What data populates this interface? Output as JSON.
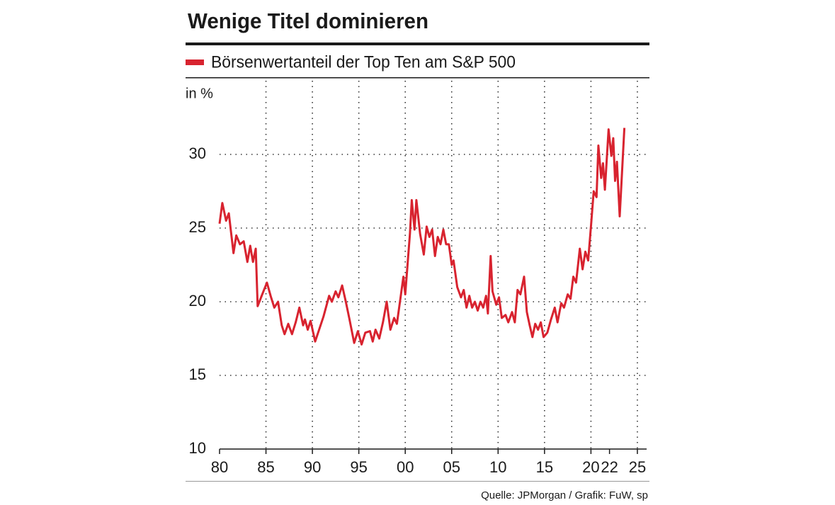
{
  "chart_data": {
    "type": "line",
    "title": "Wenige Titel dominieren",
    "y_label": "in %",
    "source": "Quelle: JPMorgan / Grafik: FuW, sp",
    "xlim": [
      1980,
      2026
    ],
    "xticks": [
      {
        "value": 1980,
        "label": "80"
      },
      {
        "value": 1985,
        "label": "85"
      },
      {
        "value": 1990,
        "label": "90"
      },
      {
        "value": 1995,
        "label": "95"
      },
      {
        "value": 2000,
        "label": "00"
      },
      {
        "value": 2005,
        "label": "05"
      },
      {
        "value": 2010,
        "label": "10"
      },
      {
        "value": 2015,
        "label": "15"
      },
      {
        "value": 2020,
        "label": "20"
      },
      {
        "value": 2022,
        "label": "22"
      },
      {
        "value": 2025,
        "label": "25"
      }
    ],
    "ylim": [
      10,
      35
    ],
    "yticks": [
      10,
      15,
      20,
      25,
      30
    ],
    "grid": true,
    "series": [
      {
        "name": "Börsenwertanteil der Top Ten am S&P 500",
        "color": "#d8232f",
        "x": [
          1980.0,
          1980.3,
          1980.7,
          1981.0,
          1981.5,
          1981.8,
          1982.2,
          1982.6,
          1983.0,
          1983.3,
          1983.6,
          1983.9,
          1984.1,
          1984.6,
          1985.1,
          1985.5,
          1985.9,
          1986.3,
          1986.7,
          1987.0,
          1987.4,
          1987.8,
          1988.2,
          1988.6,
          1989.0,
          1989.2,
          1989.5,
          1989.8,
          1990.3,
          1991.2,
          1991.8,
          1992.1,
          1992.5,
          1992.8,
          1993.2,
          1993.6,
          1994.0,
          1994.5,
          1994.9,
          1995.3,
          1995.7,
          1996.2,
          1996.5,
          1996.8,
          1997.2,
          1997.6,
          1998.0,
          1998.4,
          1998.8,
          1999.1,
          1999.5,
          1999.8,
          2000.0,
          2000.5,
          2000.7,
          2001.0,
          2001.2,
          2001.6,
          2002.0,
          2002.3,
          2002.6,
          2002.9,
          2003.2,
          2003.5,
          2003.8,
          2004.1,
          2004.4,
          2004.7,
          2005.0,
          2005.2,
          2005.6,
          2006.0,
          2006.3,
          2006.6,
          2006.9,
          2007.2,
          2007.5,
          2007.8,
          2008.1,
          2008.4,
          2008.7,
          2008.9,
          2009.2,
          2009.4,
          2009.8,
          2010.1,
          2010.4,
          2010.8,
          2011.1,
          2011.5,
          2011.8,
          2012.1,
          2012.4,
          2012.8,
          2013.1,
          2013.4,
          2013.7,
          2014.0,
          2014.3,
          2014.6,
          2014.9,
          2015.3,
          2015.7,
          2016.1,
          2016.4,
          2016.8,
          2017.1,
          2017.5,
          2017.8,
          2018.1,
          2018.4,
          2018.8,
          2019.1,
          2019.4,
          2019.7,
          2020.0,
          2020.3,
          2020.6,
          2020.8,
          2021.1,
          2021.3,
          2021.5,
          2021.9,
          2022.2,
          2022.4,
          2022.6,
          2022.8,
          2023.1,
          2023.6
        ],
        "values": [
          25.3,
          26.7,
          25.5,
          26.0,
          23.3,
          24.5,
          23.9,
          24.1,
          22.7,
          23.8,
          22.7,
          23.6,
          19.7,
          20.5,
          21.3,
          20.4,
          19.6,
          20.0,
          18.4,
          17.8,
          18.5,
          17.8,
          18.6,
          19.6,
          18.4,
          18.8,
          18.1,
          18.7,
          17.3,
          19.0,
          20.4,
          20.0,
          20.7,
          20.3,
          21.1,
          20.0,
          18.8,
          17.2,
          18.0,
          17.1,
          17.9,
          18.0,
          17.3,
          18.1,
          17.5,
          18.6,
          20.0,
          18.1,
          18.9,
          18.5,
          20.3,
          21.7,
          20.5,
          24.6,
          26.9,
          24.9,
          26.9,
          24.6,
          23.2,
          25.1,
          24.4,
          24.9,
          23.1,
          24.4,
          23.9,
          24.9,
          23.9,
          23.9,
          22.5,
          22.8,
          21.0,
          20.3,
          20.8,
          19.6,
          20.4,
          19.6,
          20.0,
          19.4,
          20.0,
          19.6,
          20.4,
          19.2,
          23.1,
          20.7,
          19.8,
          20.3,
          18.9,
          19.1,
          18.6,
          19.3,
          18.6,
          20.8,
          20.5,
          21.7,
          19.3,
          18.4,
          17.6,
          18.5,
          18.1,
          18.6,
          17.6,
          17.9,
          18.8,
          19.6,
          18.6,
          19.9,
          19.6,
          20.5,
          20.2,
          21.7,
          21.3,
          23.6,
          22.2,
          23.4,
          22.8,
          25.1,
          27.5,
          27.1,
          30.6,
          28.4,
          29.4,
          27.6,
          31.7,
          29.9,
          31.1,
          28.2,
          29.5,
          25.8,
          31.8
        ]
      }
    ]
  }
}
